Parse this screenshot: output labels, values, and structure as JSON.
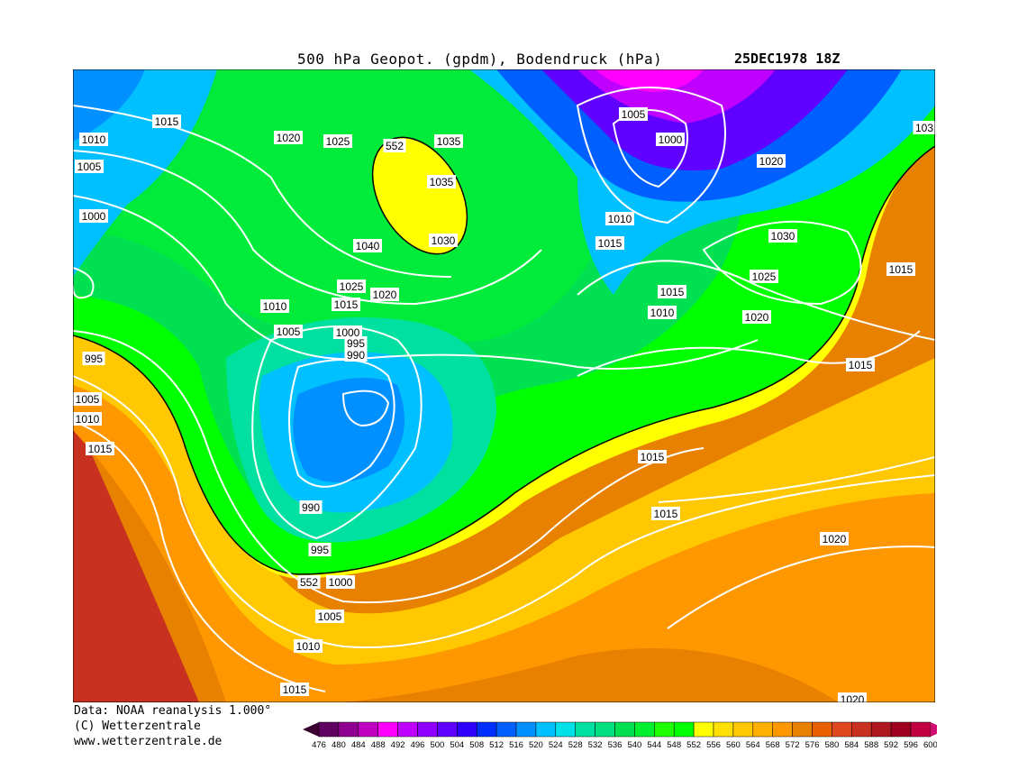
{
  "header": {
    "title": "500 hPa Geopot. (gpdm), Bodendruck (hPa)",
    "datetime": "25DEC1978 18Z"
  },
  "footer": {
    "source": "Data: NOAA reanalysis 1.000°",
    "copyright": "(C) Wetterzentrale",
    "website": "www.wetterzentrale.de"
  },
  "legend": {
    "ticks": [
      "476",
      "480",
      "484",
      "488",
      "492",
      "496",
      "500",
      "504",
      "508",
      "512",
      "516",
      "520",
      "524",
      "528",
      "532",
      "536",
      "540",
      "544",
      "548",
      "552",
      "556",
      "560",
      "564",
      "568",
      "572",
      "576",
      "580",
      "584",
      "588",
      "592",
      "596",
      "600"
    ],
    "colors": [
      "#3a0030",
      "#600060",
      "#900090",
      "#c000c0",
      "#ff00ff",
      "#c000ff",
      "#9000ff",
      "#6000ff",
      "#3000ff",
      "#0030ff",
      "#0060ff",
      "#0090ff",
      "#00c0ff",
      "#00e0e8",
      "#00e0a0",
      "#00e080",
      "#00e050",
      "#00f030",
      "#20ff00",
      "#00ff00",
      "#ffff00",
      "#ffe000",
      "#ffc800",
      "#ffb000",
      "#ff9800",
      "#e88000",
      "#e86000",
      "#e04820",
      "#c83020",
      "#b01820",
      "#a00020",
      "#c00040",
      "#d01070"
    ]
  },
  "map": {
    "isobar_labels": [
      "1015",
      "1010",
      "1005",
      "1000",
      "995",
      "1005",
      "1010",
      "1015",
      "1020",
      "1025",
      "552",
      "1035",
      "1035",
      "1040",
      "1030",
      "1025",
      "1020",
      "1015",
      "1010",
      "1005",
      "1000",
      "995",
      "990",
      "990",
      "995",
      "552",
      "1000",
      "1005",
      "1010",
      "1015",
      "1005",
      "1000",
      "1020",
      "1010",
      "1015",
      "1030",
      "1025",
      "1015",
      "1015",
      "1010",
      "1020",
      "1015",
      "1015",
      "1015",
      "1020",
      "103",
      "1020"
    ]
  }
}
